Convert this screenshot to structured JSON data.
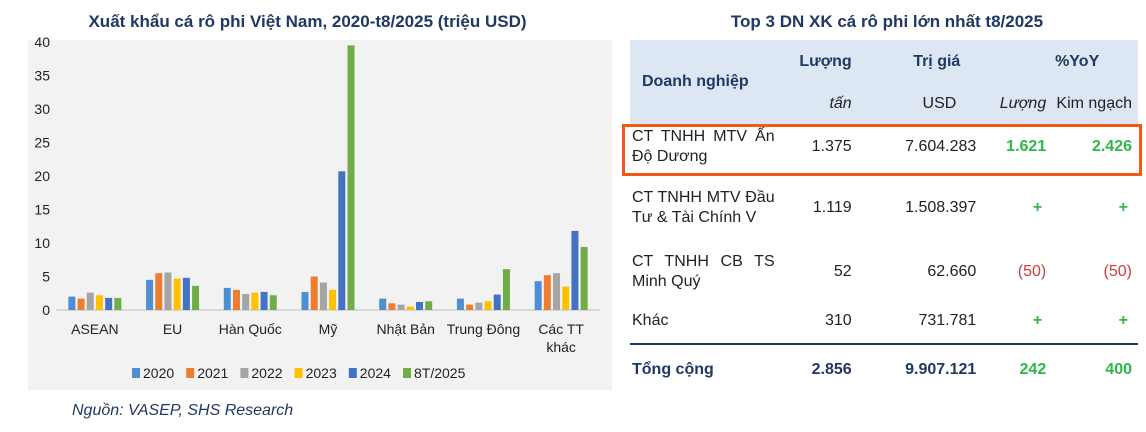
{
  "chart_data": {
    "type": "bar",
    "title": "Xuất khẩu cá rô phi Việt Nam, 2020-t8/2025 (triệu USD)",
    "categories": [
      "ASEAN",
      "EU",
      "Hàn Quốc",
      "Mỹ",
      "Nhật Bản",
      "Trung Đông",
      "Các TT\nkhác"
    ],
    "ylim": [
      0,
      40
    ],
    "yticks": [
      0,
      5,
      10,
      15,
      20,
      25,
      30,
      35,
      40
    ],
    "series": [
      {
        "name": "2020",
        "color": "#4e8fd4",
        "values": [
          2.0,
          4.5,
          3.3,
          2.7,
          1.7,
          1.7,
          4.3
        ]
      },
      {
        "name": "2021",
        "color": "#ed7d31",
        "values": [
          1.7,
          5.5,
          3.0,
          5.0,
          1.0,
          0.8,
          5.2
        ]
      },
      {
        "name": "2022",
        "color": "#a5a5a5",
        "values": [
          2.6,
          5.6,
          2.4,
          4.1,
          0.8,
          1.1,
          5.5
        ]
      },
      {
        "name": "2023",
        "color": "#ffc000",
        "values": [
          2.2,
          4.7,
          2.6,
          3.0,
          0.5,
          1.3,
          3.5
        ]
      },
      {
        "name": "2024",
        "color": "#4472c4",
        "values": [
          1.8,
          4.8,
          2.7,
          20.7,
          1.2,
          2.3,
          11.8
        ]
      },
      {
        "name": "8T/2025",
        "color": "#70ad47",
        "values": [
          1.8,
          3.6,
          2.2,
          39.5,
          1.3,
          6.1,
          9.4
        ]
      }
    ],
    "grid": false,
    "legend": "bottom"
  },
  "source": "Nguồn: VASEP, SHS Research",
  "table": {
    "title": "Top 3 DN XK cá rô phi lớn nhất t8/2025",
    "headers": {
      "company": "Doanh nghiệp",
      "volume": "Lượng",
      "value": "Trị giá",
      "yoy": "%YoY",
      "volume_unit": "tấn",
      "value_unit": "USD",
      "yoy_volume": "Lượng",
      "yoy_value": "Kim ngạch"
    },
    "rows": [
      {
        "name": "CT TNHH MTV Ấn Độ Dương",
        "volume": "1.375",
        "value": "7.604.283",
        "yoy_volume": "1.621",
        "yoy_value": "2.426",
        "highlight": true
      },
      {
        "name": "CT TNHH MTV Đầu Tư & Tài Chính V",
        "volume": "1.119",
        "value": "1.508.397",
        "yoy_volume": "+",
        "yoy_value": "+"
      },
      {
        "name": "CT TNHH CB TS Minh Quý",
        "volume": "52",
        "value": "62.660",
        "yoy_volume": "(50)",
        "yoy_value": "(50)"
      },
      {
        "name": "Khác",
        "volume": "310",
        "value": "731.781",
        "yoy_volume": "+",
        "yoy_value": "+"
      }
    ],
    "total": {
      "name": "Tổng cộng",
      "volume": "2.856",
      "value": "9.907.121",
      "yoy_volume": "242",
      "yoy_value": "400"
    }
  }
}
